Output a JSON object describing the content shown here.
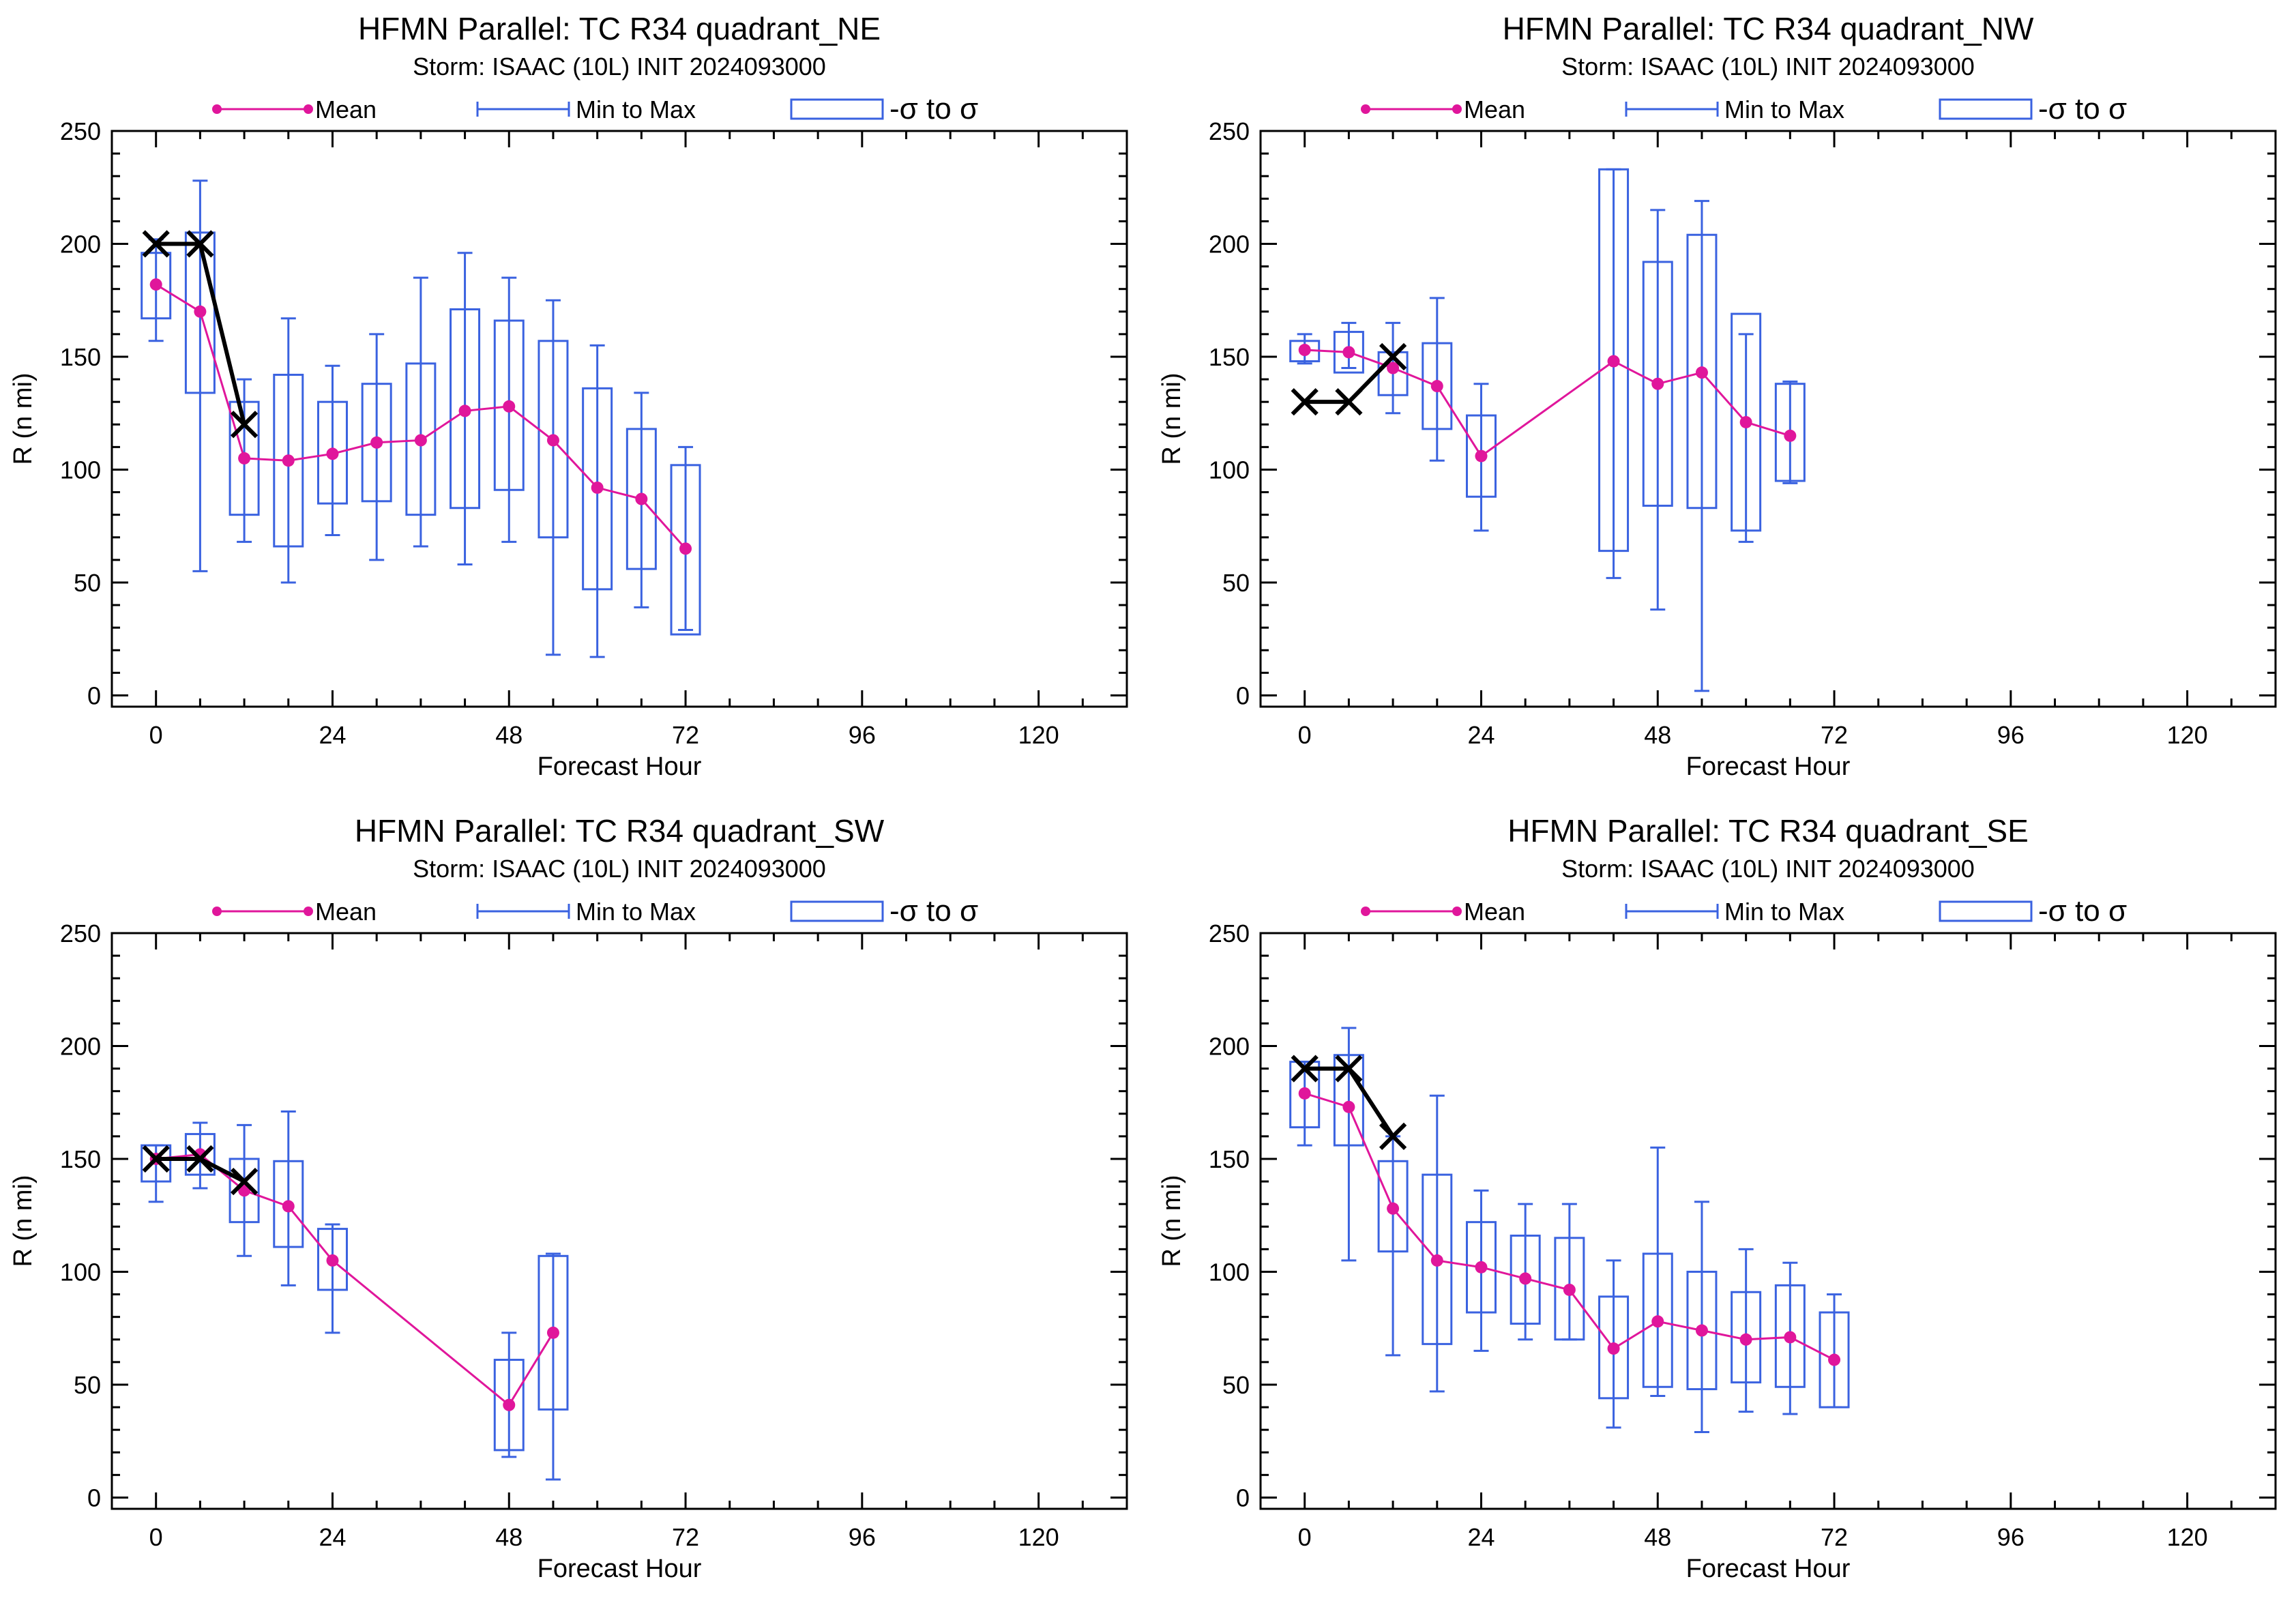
{
  "legend": {
    "mean": "Mean",
    "minmax": "Min to Max",
    "sigma": "-σ to σ"
  },
  "colors": {
    "mean": "#e0169b",
    "box": "#3a62e0",
    "obs": "#000000"
  },
  "chart_data": [
    {
      "type": "box",
      "title": "HFMN Parallel: TC  R34 quadrant_NE",
      "subtitle": "Storm: ISAAC (10L) INIT 2024093000",
      "xlabel": "Forecast Hour",
      "ylabel": "R (n mi)",
      "xlim": [
        -6,
        132
      ],
      "ylim": [
        -5,
        250
      ],
      "xticks": [
        0,
        24,
        48,
        72,
        96,
        120
      ],
      "yticks": [
        0,
        50,
        100,
        150,
        200,
        250
      ],
      "legend_position": "top",
      "x": [
        0,
        6,
        12,
        18,
        24,
        30,
        36,
        42,
        48,
        54,
        60,
        66,
        72
      ],
      "mean": [
        182,
        170,
        105,
        104,
        107,
        112,
        113,
        126,
        128,
        113,
        92,
        87,
        65
      ],
      "min": [
        157,
        55,
        68,
        50,
        71,
        60,
        66,
        58,
        68,
        18,
        17,
        39,
        29
      ],
      "max": [
        202,
        228,
        140,
        167,
        146,
        160,
        185,
        196,
        185,
        175,
        155,
        134,
        110
      ],
      "sigma_low": [
        167,
        134,
        80,
        66,
        85,
        86,
        80,
        83,
        91,
        70,
        47,
        56,
        27
      ],
      "sigma_high": [
        196,
        205,
        130,
        142,
        130,
        138,
        147,
        171,
        166,
        157,
        136,
        118,
        102
      ],
      "obs_x": [
        0,
        6,
        12
      ],
      "obs_y": [
        200,
        200,
        120
      ]
    },
    {
      "type": "box",
      "title": "HFMN Parallel: TC  R34 quadrant_NW",
      "subtitle": "Storm: ISAAC (10L) INIT 2024093000",
      "xlabel": "Forecast Hour",
      "ylabel": "R (n mi)",
      "xlim": [
        -6,
        132
      ],
      "ylim": [
        -5,
        250
      ],
      "xticks": [
        0,
        24,
        48,
        72,
        96,
        120
      ],
      "yticks": [
        0,
        50,
        100,
        150,
        200,
        250
      ],
      "legend_position": "top",
      "x": [
        0,
        6,
        12,
        18,
        24,
        42,
        48,
        54,
        60,
        66
      ],
      "mean": [
        153,
        152,
        145,
        137,
        106,
        148,
        138,
        143,
        121,
        115
      ],
      "min": [
        147,
        145,
        125,
        104,
        73,
        52,
        38,
        2,
        68,
        94
      ],
      "max": [
        160,
        165,
        165,
        176,
        138,
        233,
        215,
        219,
        160,
        139
      ],
      "sigma_low": [
        148,
        143,
        133,
        118,
        88,
        64,
        84,
        83,
        73,
        95
      ],
      "sigma_high": [
        157,
        161,
        152,
        156,
        124,
        233,
        192,
        204,
        169,
        138
      ],
      "obs_x": [
        0,
        6,
        12
      ],
      "obs_y": [
        130,
        130,
        150
      ]
    },
    {
      "type": "box",
      "title": "HFMN Parallel: TC  R34 quadrant_SW",
      "subtitle": "Storm: ISAAC (10L) INIT 2024093000",
      "xlabel": "Forecast Hour",
      "ylabel": "R (n mi)",
      "xlim": [
        -6,
        132
      ],
      "ylim": [
        -5,
        250
      ],
      "xticks": [
        0,
        24,
        48,
        72,
        96,
        120
      ],
      "yticks": [
        0,
        50,
        100,
        150,
        200,
        250
      ],
      "legend_position": "top",
      "x": [
        0,
        6,
        12,
        18,
        24,
        48,
        54
      ],
      "mean": [
        150,
        152,
        136,
        129,
        105,
        41,
        73
      ],
      "min": [
        131,
        137,
        107,
        94,
        73,
        18,
        8
      ],
      "max": [
        156,
        166,
        165,
        171,
        121,
        73,
        108
      ],
      "sigma_low": [
        140,
        143,
        122,
        111,
        92,
        21,
        39
      ],
      "sigma_high": [
        156,
        161,
        150,
        149,
        119,
        61,
        107
      ],
      "obs_x": [
        0,
        6,
        12
      ],
      "obs_y": [
        150,
        150,
        140
      ]
    },
    {
      "type": "box",
      "title": "HFMN Parallel: TC  R34 quadrant_SE",
      "subtitle": "Storm: ISAAC (10L) INIT 2024093000",
      "xlabel": "Forecast Hour",
      "ylabel": "R (n mi)",
      "xlim": [
        -6,
        132
      ],
      "ylim": [
        -5,
        250
      ],
      "xticks": [
        0,
        24,
        48,
        72,
        96,
        120
      ],
      "yticks": [
        0,
        50,
        100,
        150,
        200,
        250
      ],
      "legend_position": "top",
      "x": [
        0,
        6,
        12,
        18,
        24,
        30,
        36,
        42,
        48,
        54,
        60,
        66,
        72
      ],
      "mean": [
        179,
        173,
        128,
        105,
        102,
        97,
        92,
        66,
        78,
        74,
        70,
        71,
        61
      ],
      "min": [
        156,
        105,
        63,
        47,
        65,
        70,
        70,
        31,
        45,
        29,
        38,
        37,
        40
      ],
      "max": [
        193,
        208,
        160,
        178,
        136,
        130,
        130,
        105,
        155,
        131,
        110,
        104,
        90
      ],
      "sigma_low": [
        164,
        156,
        109,
        68,
        82,
        77,
        70,
        44,
        49,
        48,
        51,
        49,
        40
      ],
      "sigma_high": [
        193,
        196,
        149,
        143,
        122,
        116,
        115,
        89,
        108,
        100,
        91,
        94,
        82
      ],
      "obs_x": [
        0,
        6,
        12
      ],
      "obs_y": [
        190,
        190,
        160
      ]
    }
  ]
}
